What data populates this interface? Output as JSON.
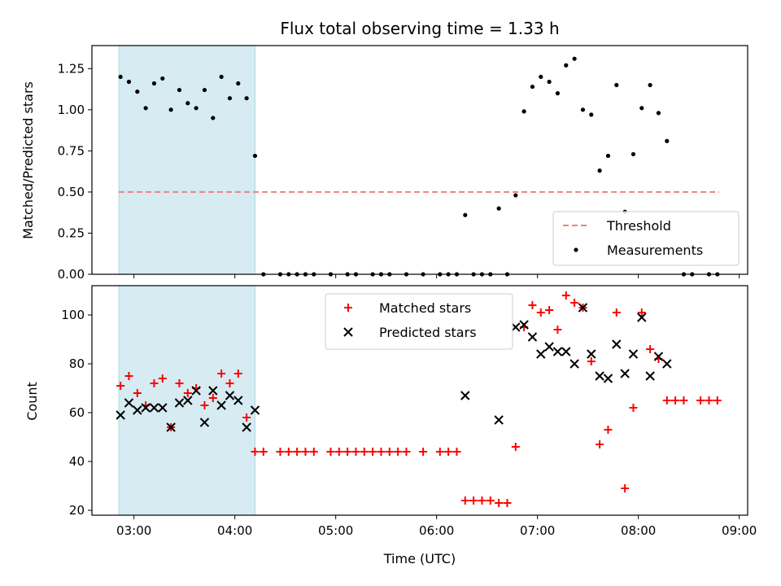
{
  "chart_data": [
    {
      "type": "scatter",
      "title": "Flux total observing time = 1.33 h",
      "xlabel": "",
      "ylabel": "Matched/Predicted stars",
      "xlim": [
        "02:35",
        "09:05"
      ],
      "ylim": [
        0,
        1.39
      ],
      "yticks": [
        0.0,
        0.25,
        0.5,
        0.75,
        1.0,
        1.25
      ],
      "ytick_labels": [
        "0.00",
        "0.25",
        "0.50",
        "0.75",
        "1.00",
        "1.25"
      ],
      "xticks": [
        "03:00",
        "04:00",
        "05:00",
        "06:00",
        "07:00",
        "08:00",
        "09:00"
      ],
      "xtick_labels_visible": false,
      "shaded_region": {
        "start": "02:51",
        "end": "04:12",
        "color": "#add8e6"
      },
      "legend": {
        "position": "lower right",
        "entries": [
          "Threshold",
          "Measurements"
        ]
      },
      "threshold": {
        "name": "Threshold",
        "value": 0.5,
        "x_start": "02:51",
        "x_end": "08:48",
        "color": "#f08080",
        "style": "dashed"
      },
      "series": [
        {
          "name": "Measurements",
          "marker": "dot",
          "color": "#000000",
          "points": [
            [
              "02:52",
              1.2
            ],
            [
              "02:57",
              1.17
            ],
            [
              "03:02",
              1.11
            ],
            [
              "03:07",
              1.01
            ],
            [
              "03:12",
              1.16
            ],
            [
              "03:17",
              1.19
            ],
            [
              "03:22",
              1.0
            ],
            [
              "03:27",
              1.12
            ],
            [
              "03:32",
              1.04
            ],
            [
              "03:37",
              1.01
            ],
            [
              "03:42",
              1.12
            ],
            [
              "03:47",
              0.95
            ],
            [
              "03:52",
              1.2
            ],
            [
              "03:57",
              1.07
            ],
            [
              "04:02",
              1.16
            ],
            [
              "04:07",
              1.07
            ],
            [
              "04:12",
              0.72
            ],
            [
              "04:17",
              0.0
            ],
            [
              "04:27",
              0.0
            ],
            [
              "04:32",
              0.0
            ],
            [
              "04:37",
              0.0
            ],
            [
              "04:42",
              0.0
            ],
            [
              "04:47",
              0.0
            ],
            [
              "04:57",
              0.0
            ],
            [
              "05:07",
              0.0
            ],
            [
              "05:12",
              0.0
            ],
            [
              "05:22",
              0.0
            ],
            [
              "05:27",
              0.0
            ],
            [
              "05:32",
              0.0
            ],
            [
              "05:42",
              0.0
            ],
            [
              "05:52",
              0.0
            ],
            [
              "06:02",
              0.0
            ],
            [
              "06:07",
              0.0
            ],
            [
              "06:12",
              0.0
            ],
            [
              "06:17",
              0.36
            ],
            [
              "06:22",
              0.0
            ],
            [
              "06:27",
              0.0
            ],
            [
              "06:32",
              0.0
            ],
            [
              "06:37",
              0.4
            ],
            [
              "06:42",
              0.0
            ],
            [
              "06:47",
              0.48
            ],
            [
              "06:52",
              0.99
            ],
            [
              "06:57",
              1.14
            ],
            [
              "07:02",
              1.2
            ],
            [
              "07:07",
              1.17
            ],
            [
              "07:12",
              1.1
            ],
            [
              "07:17",
              1.27
            ],
            [
              "07:22",
              1.31
            ],
            [
              "07:27",
              1.0
            ],
            [
              "07:32",
              0.97
            ],
            [
              "07:37",
              0.63
            ],
            [
              "07:42",
              0.72
            ],
            [
              "07:47",
              1.15
            ],
            [
              "07:52",
              0.38
            ],
            [
              "07:57",
              0.73
            ],
            [
              "08:02",
              1.01
            ],
            [
              "08:07",
              1.15
            ],
            [
              "08:12",
              0.98
            ],
            [
              "08:17",
              0.81
            ],
            [
              "08:27",
              0.0
            ],
            [
              "08:32",
              0.0
            ],
            [
              "08:42",
              0.0
            ],
            [
              "08:47",
              0.0
            ]
          ]
        }
      ]
    },
    {
      "type": "scatter",
      "title": "",
      "xlabel": "Time (UTC)",
      "ylabel": "Count",
      "xlim": [
        "02:35",
        "09:05"
      ],
      "ylim": [
        18,
        112
      ],
      "yticks": [
        20,
        40,
        60,
        80,
        100
      ],
      "xticks": [
        "03:00",
        "04:00",
        "05:00",
        "06:00",
        "07:00",
        "08:00",
        "09:00"
      ],
      "shaded_region": {
        "start": "02:51",
        "end": "04:12",
        "color": "#add8e6"
      },
      "legend": {
        "position": "upper center",
        "entries": [
          "Matched stars",
          "Predicted stars"
        ]
      },
      "series": [
        {
          "name": "Matched stars",
          "marker": "plus",
          "color": "#ff0000",
          "points": [
            [
              "02:52",
              71
            ],
            [
              "02:57",
              75
            ],
            [
              "03:02",
              68
            ],
            [
              "03:07",
              63
            ],
            [
              "03:12",
              72
            ],
            [
              "03:17",
              74
            ],
            [
              "03:22",
              54
            ],
            [
              "03:27",
              72
            ],
            [
              "03:32",
              68
            ],
            [
              "03:37",
              70
            ],
            [
              "03:42",
              63
            ],
            [
              "03:47",
              66
            ],
            [
              "03:52",
              76
            ],
            [
              "03:57",
              72
            ],
            [
              "04:02",
              76
            ],
            [
              "04:07",
              58
            ],
            [
              "04:12",
              44
            ],
            [
              "04:17",
              44
            ],
            [
              "04:27",
              44
            ],
            [
              "04:32",
              44
            ],
            [
              "04:37",
              44
            ],
            [
              "04:42",
              44
            ],
            [
              "04:47",
              44
            ],
            [
              "04:57",
              44
            ],
            [
              "05:02",
              44
            ],
            [
              "05:07",
              44
            ],
            [
              "05:12",
              44
            ],
            [
              "05:17",
              44
            ],
            [
              "05:22",
              44
            ],
            [
              "05:27",
              44
            ],
            [
              "05:32",
              44
            ],
            [
              "05:37",
              44
            ],
            [
              "05:42",
              44
            ],
            [
              "05:52",
              44
            ],
            [
              "06:02",
              44
            ],
            [
              "06:07",
              44
            ],
            [
              "06:12",
              44
            ],
            [
              "06:17",
              24
            ],
            [
              "06:22",
              24
            ],
            [
              "06:27",
              24
            ],
            [
              "06:32",
              24
            ],
            [
              "06:37",
              23
            ],
            [
              "06:42",
              23
            ],
            [
              "06:47",
              46
            ],
            [
              "06:52",
              95
            ],
            [
              "06:57",
              104
            ],
            [
              "07:02",
              101
            ],
            [
              "07:07",
              102
            ],
            [
              "07:12",
              94
            ],
            [
              "07:17",
              108
            ],
            [
              "07:22",
              105
            ],
            [
              "07:27",
              103
            ],
            [
              "07:32",
              81
            ],
            [
              "07:37",
              47
            ],
            [
              "07:42",
              53
            ],
            [
              "07:47",
              101
            ],
            [
              "07:52",
              29
            ],
            [
              "07:57",
              62
            ],
            [
              "08:02",
              101
            ],
            [
              "08:07",
              86
            ],
            [
              "08:12",
              82
            ],
            [
              "08:17",
              65
            ],
            [
              "08:22",
              65
            ],
            [
              "08:27",
              65
            ],
            [
              "08:37",
              65
            ],
            [
              "08:42",
              65
            ],
            [
              "08:47",
              65
            ]
          ]
        },
        {
          "name": "Predicted stars",
          "marker": "x",
          "color": "#000000",
          "points": [
            [
              "02:52",
              59
            ],
            [
              "02:57",
              64
            ],
            [
              "03:02",
              61
            ],
            [
              "03:07",
              62
            ],
            [
              "03:12",
              62
            ],
            [
              "03:17",
              62
            ],
            [
              "03:22",
              54
            ],
            [
              "03:27",
              64
            ],
            [
              "03:32",
              65
            ],
            [
              "03:37",
              69
            ],
            [
              "03:42",
              56
            ],
            [
              "03:47",
              69
            ],
            [
              "03:52",
              63
            ],
            [
              "03:57",
              67
            ],
            [
              "04:02",
              65
            ],
            [
              "04:07",
              54
            ],
            [
              "04:12",
              61
            ],
            [
              "06:17",
              67
            ],
            [
              "06:37",
              57
            ],
            [
              "06:47",
              95
            ],
            [
              "06:52",
              96
            ],
            [
              "06:57",
              91
            ],
            [
              "07:02",
              84
            ],
            [
              "07:07",
              87
            ],
            [
              "07:12",
              85
            ],
            [
              "07:17",
              85
            ],
            [
              "07:22",
              80
            ],
            [
              "07:27",
              103
            ],
            [
              "07:32",
              84
            ],
            [
              "07:37",
              75
            ],
            [
              "07:42",
              74
            ],
            [
              "07:47",
              88
            ],
            [
              "07:52",
              76
            ],
            [
              "07:57",
              84
            ],
            [
              "08:02",
              99
            ],
            [
              "08:07",
              75
            ],
            [
              "08:12",
              83
            ],
            [
              "08:17",
              80
            ]
          ]
        }
      ]
    }
  ]
}
